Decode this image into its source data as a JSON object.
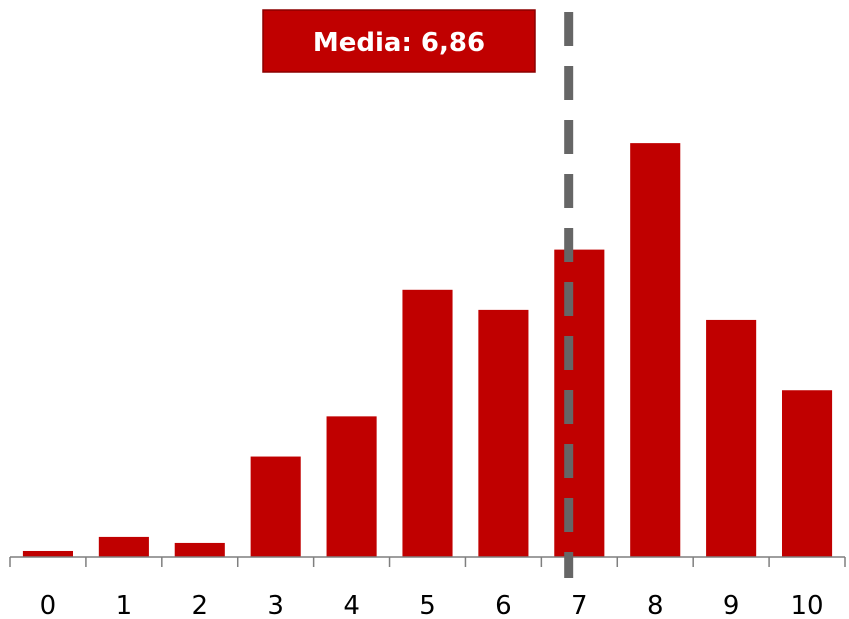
{
  "chart_data": {
    "type": "bar",
    "categories": [
      "0",
      "1",
      "2",
      "3",
      "4",
      "5",
      "6",
      "7",
      "8",
      "9",
      "10"
    ],
    "values": [
      0.3,
      1.0,
      0.7,
      5.0,
      7.0,
      13.3,
      12.3,
      15.3,
      20.6,
      11.8,
      8.3
    ],
    "ylim": [
      0,
      22
    ],
    "grid": false,
    "legend": "none",
    "mean": {
      "value": 6.86,
      "label": "Media: 6,86"
    },
    "colors": {
      "bar": "#c00000",
      "mean_line": "#666666",
      "badge_fill": "#c00000",
      "badge_border": "#8b0000",
      "axis": "#7f7f7f"
    }
  }
}
